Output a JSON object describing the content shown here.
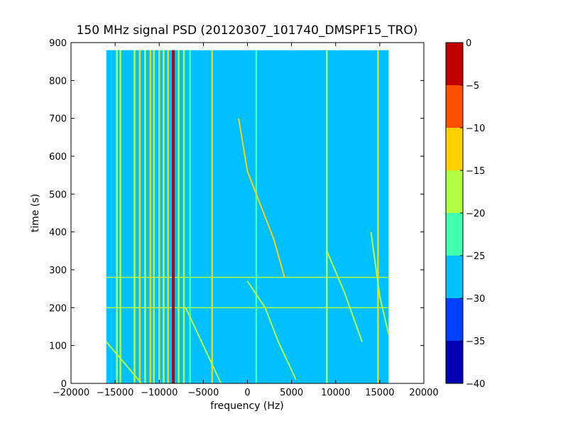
{
  "chart_data": {
    "type": "heatmap",
    "title": "150 MHz signal PSD (20120307_101740_DMSPF15_TRO)",
    "xlabel": "frequency (Hz)",
    "ylabel": "time (s)",
    "xlim": [
      -20000,
      20000
    ],
    "ylim": [
      0,
      900
    ],
    "data_extent": {
      "x": [
        -16000,
        16000
      ],
      "y": [
        0,
        880
      ]
    },
    "xticks": [
      -20000,
      -15000,
      -10000,
      -5000,
      0,
      5000,
      10000,
      15000,
      20000
    ],
    "xtick_labels": [
      "−20000",
      "−15000",
      "−10000",
      "−5000",
      "0",
      "5000",
      "10000",
      "15000",
      "20000"
    ],
    "yticks": [
      0,
      100,
      200,
      300,
      400,
      500,
      600,
      700,
      800,
      900
    ],
    "ytick_labels": [
      "0",
      "100",
      "200",
      "300",
      "400",
      "500",
      "600",
      "700",
      "800",
      "900"
    ],
    "colorbar": {
      "range": [
        -40,
        0
      ],
      "levels": [
        -40,
        -35,
        -30,
        -25,
        -20,
        -15,
        -10,
        -5,
        0
      ],
      "tick_labels": [
        "−40",
        "−35",
        "−30",
        "−25",
        "−20",
        "−15",
        "−10",
        "−5",
        "0"
      ],
      "colors": [
        "#0000b0",
        "#0040ff",
        "#00c0ff",
        "#40ffb0",
        "#b0ff40",
        "#ffd000",
        "#ff5000",
        "#c00000"
      ]
    },
    "background_level": -28,
    "vertical_lines": [
      {
        "freq": -14800,
        "level": -18
      },
      {
        "freq": -14400,
        "level": -18
      },
      {
        "freq": -12800,
        "level": -18
      },
      {
        "freq": -12200,
        "level": -15
      },
      {
        "freq": -11600,
        "level": -18
      },
      {
        "freq": -11000,
        "level": -15
      },
      {
        "freq": -10600,
        "level": -18
      },
      {
        "freq": -10000,
        "level": -15
      },
      {
        "freq": -9500,
        "level": -18
      },
      {
        "freq": -9000,
        "level": -15
      },
      {
        "freq": -8400,
        "level": -3
      },
      {
        "freq": -7800,
        "level": -18
      },
      {
        "freq": -7200,
        "level": -18
      },
      {
        "freq": -6500,
        "level": -23
      },
      {
        "freq": -4000,
        "level": -15
      },
      {
        "freq": 1000,
        "level": -23
      },
      {
        "freq": 9000,
        "level": -18
      },
      {
        "freq": 14800,
        "level": -15
      }
    ],
    "horizontal_lines": [
      {
        "time": 280,
        "level": -20
      },
      {
        "time": 200,
        "level": -20
      }
    ],
    "drift_traces": [
      {
        "level": -15,
        "points": [
          [
            -1000,
            700
          ],
          [
            0,
            560
          ],
          [
            1500,
            470
          ],
          [
            3000,
            380
          ],
          [
            4200,
            280
          ]
        ]
      },
      {
        "level": -20,
        "points": [
          [
            0,
            270
          ],
          [
            2000,
            200
          ],
          [
            3500,
            110
          ],
          [
            5500,
            10
          ]
        ]
      },
      {
        "level": -20,
        "points": [
          [
            -16000,
            110
          ],
          [
            -12000,
            0
          ]
        ]
      },
      {
        "level": -20,
        "points": [
          [
            -7000,
            200
          ],
          [
            -5000,
            100
          ],
          [
            -3000,
            0
          ]
        ]
      },
      {
        "level": -20,
        "points": [
          [
            14000,
            400
          ],
          [
            15000,
            230
          ],
          [
            16000,
            130
          ]
        ]
      },
      {
        "level": -20,
        "points": [
          [
            9000,
            350
          ],
          [
            11000,
            240
          ],
          [
            13000,
            110
          ]
        ]
      }
    ]
  }
}
